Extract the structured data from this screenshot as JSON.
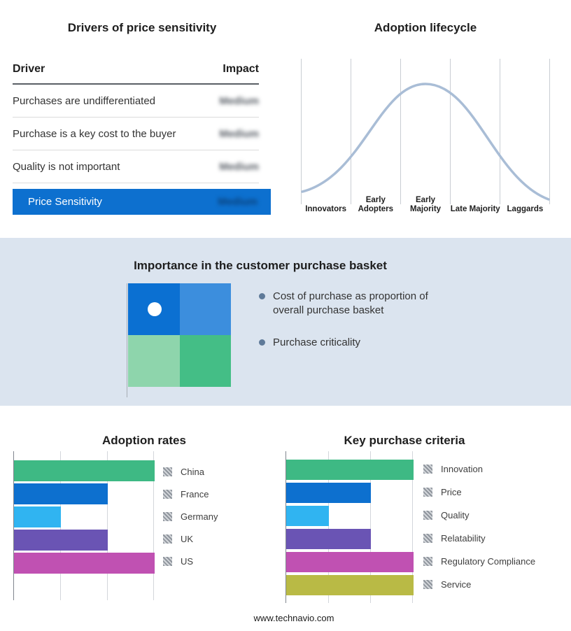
{
  "drivers": {
    "title": "Drivers of price sensitivity",
    "columns": {
      "driver": "Driver",
      "impact": "Impact"
    },
    "rows": [
      {
        "driver": "Purchases are undifferentiated",
        "impact": "Medium"
      },
      {
        "driver": "Purchase is a key cost to the buyer",
        "impact": "Medium"
      },
      {
        "driver": "Quality is not important",
        "impact": "Medium"
      }
    ],
    "summary": {
      "label": "Price Sensitivity",
      "impact": "Medium",
      "bg": "#0d70cf"
    }
  },
  "lifecycle": {
    "title": "Adoption lifecycle",
    "stages": [
      "Innovators",
      "Early Adopters",
      "Early Majority",
      "Late Majority",
      "Laggards"
    ],
    "curve_color": "#a9bdd6"
  },
  "basket": {
    "title": "Importance in the customer purchase basket",
    "bullets": [
      "Cost of purchase as proportion of overall purchase basket",
      "Purchase criticality"
    ],
    "quadrant_colors": [
      "#0b70d2",
      "#3c8edd",
      "#8ed5ac",
      "#44be86"
    ],
    "marker_color": "#ffffff"
  },
  "chart_data": [
    {
      "type": "bar",
      "orientation": "horizontal",
      "title": "Adoption rates",
      "categories": [
        "China",
        "France",
        "Germany",
        "UK",
        "US"
      ],
      "values": [
        3,
        2,
        1,
        2,
        3
      ],
      "colors": [
        "#3eb984",
        "#0d70cf",
        "#30b4f1",
        "#6a54b4",
        "#c051b2"
      ],
      "xlim": [
        0,
        3
      ],
      "grid": true,
      "legend_position": "right"
    },
    {
      "type": "bar",
      "orientation": "horizontal",
      "title": "Key purchase criteria",
      "categories": [
        "Innovation",
        "Price",
        "Quality",
        "Relatability",
        "Regulatory Compliance",
        "Service"
      ],
      "values": [
        3,
        2,
        1,
        2,
        3,
        3
      ],
      "colors": [
        "#3eb984",
        "#0d70cf",
        "#30b4f1",
        "#6a54b4",
        "#c051b2",
        "#b9ba45"
      ],
      "xlim": [
        0,
        3
      ],
      "grid": true,
      "legend_position": "right"
    },
    {
      "type": "line",
      "title": "Adoption lifecycle",
      "categories": [
        "Innovators",
        "Early Adopters",
        "Early Majority",
        "Late Majority",
        "Laggards"
      ],
      "shape": "bell-curve"
    }
  ],
  "footer": {
    "url": "www.technavio.com"
  }
}
